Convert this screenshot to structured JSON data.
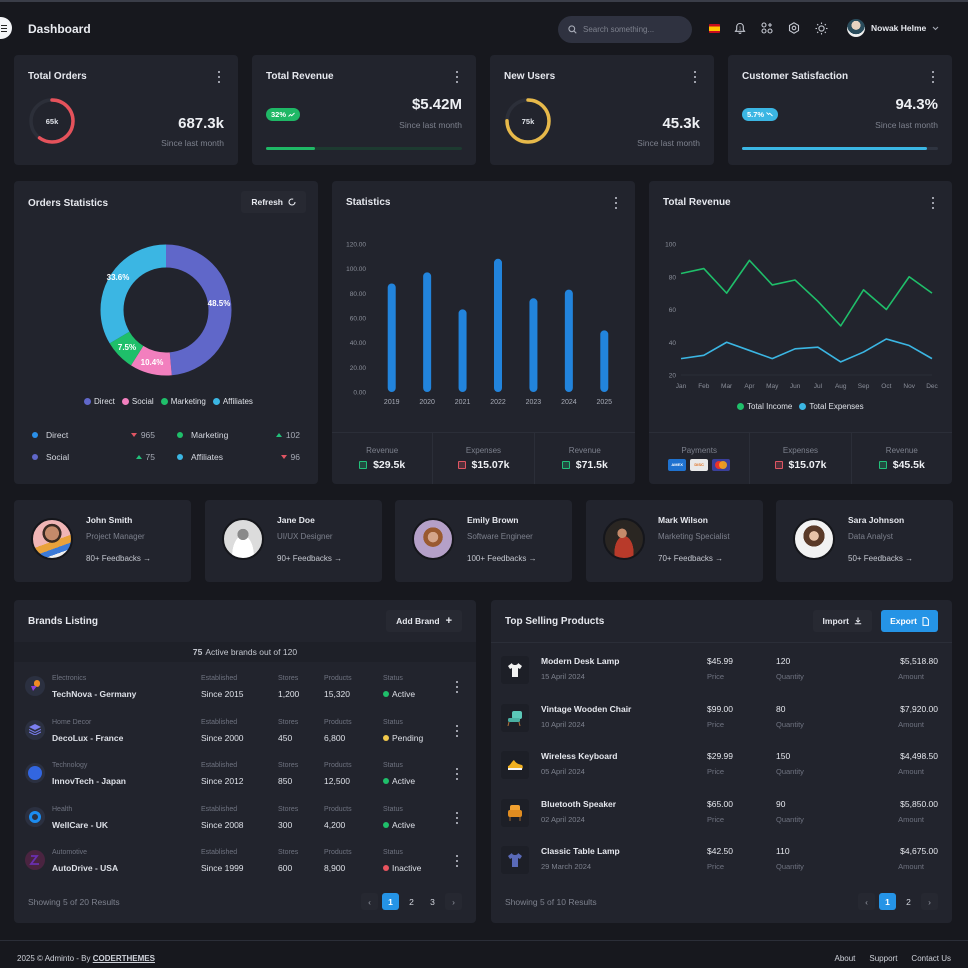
{
  "header": {
    "title": "Dashboard",
    "search_placeholder": "Search something...",
    "user_name": "Nowak Helme",
    "icons": [
      "menu-icon",
      "search-icon",
      "spain-flag-icon",
      "bell-icon",
      "apps-icon",
      "gear-icon",
      "sun-icon",
      "chevron-down-icon"
    ]
  },
  "stats": [
    {
      "title": "Total Orders",
      "ring_label": "65k",
      "ring_color": "#e5525b",
      "ring_pct": 60,
      "value": "687.3k",
      "sub": "Since last month"
    },
    {
      "title": "Total Revenue",
      "badge": "32%",
      "badge_color": "#1fb866",
      "badge_trend": "up",
      "value": "$5.42M",
      "sub": "Since last month",
      "progress_pct": 25,
      "progress_color": "#1fb866"
    },
    {
      "title": "New Users",
      "ring_label": "75k",
      "ring_color": "#e7b94a",
      "ring_pct": 75,
      "value": "45.3k",
      "sub": "Since last month"
    },
    {
      "title": "Customer Satisfaction",
      "badge": "5.7%",
      "badge_color": "#3bb6e3",
      "badge_trend": "down",
      "value": "94.3%",
      "sub": "Since last month",
      "progress_pct": 94.3,
      "progress_color": "#3bb6e3"
    }
  ],
  "orders_statistics": {
    "title": "Orders Statistics",
    "refresh_label": "Refresh",
    "legend": [
      {
        "label": "Direct",
        "color": "#6067c9"
      },
      {
        "label": "Social",
        "color": "#f27fbe"
      },
      {
        "label": "Marketing",
        "color": "#1fbf6a"
      },
      {
        "label": "Affiliates",
        "color": "#3bb6e3"
      }
    ],
    "breakdown": [
      {
        "label": "Direct",
        "dot": "#2a8fe8",
        "trend": "down",
        "value": "965"
      },
      {
        "label": "Marketing",
        "dot": "#1fbf6a",
        "trend": "up",
        "value": "102"
      },
      {
        "label": "Social",
        "dot": "#6067c9",
        "trend": "up",
        "value": "75"
      },
      {
        "label": "Affiliates",
        "dot": "#3bb6e3",
        "trend": "down",
        "value": "96"
      }
    ]
  },
  "statistics": {
    "title": "Statistics",
    "footer": [
      {
        "label": "Revenue",
        "value": "$29.5k",
        "type": "g"
      },
      {
        "label": "Expenses",
        "value": "$15.07k",
        "type": "r"
      },
      {
        "label": "Revenue",
        "value": "$71.5k",
        "type": "g"
      }
    ]
  },
  "total_revenue": {
    "title": "Total Revenue",
    "legend": [
      {
        "label": "Total Income",
        "color": "#1fbf6a"
      },
      {
        "label": "Total Expenses",
        "color": "#3bb6e3"
      }
    ],
    "payments_label": "Payments",
    "payment_methods": [
      "AMEX",
      "DISCOVER",
      "Mastercard"
    ],
    "footer": [
      {
        "label": "Expenses",
        "value": "$15.07k",
        "type": "r"
      },
      {
        "label": "Revenue",
        "value": "$45.5k",
        "type": "g"
      }
    ]
  },
  "chart_data": [
    {
      "type": "pie",
      "title": "Orders Statistics",
      "categories": [
        "Direct",
        "Social",
        "Marketing",
        "Affiliates"
      ],
      "values": [
        48.5,
        10.4,
        7.5,
        33.6
      ],
      "colors": [
        "#6067c9",
        "#f27fbe",
        "#1fbf6a",
        "#3bb6e3"
      ],
      "donut": true,
      "legend_position": "bottom"
    },
    {
      "type": "bar",
      "title": "Statistics",
      "categories": [
        "2019",
        "2020",
        "2021",
        "2022",
        "2023",
        "2024",
        "2025"
      ],
      "values": [
        88,
        97,
        67,
        108,
        76,
        83,
        50
      ],
      "yticks": [
        "0.00",
        "20.00",
        "40.00",
        "60.00",
        "80.00",
        "100.00",
        "120.00"
      ],
      "ylim": [
        0,
        120
      ],
      "xlabel": "",
      "ylabel": "",
      "color": "#2284dc",
      "grid": false
    },
    {
      "type": "line",
      "title": "Total Revenue",
      "x": [
        "Jan",
        "Feb",
        "Mar",
        "Apr",
        "May",
        "Jun",
        "Jul",
        "Aug",
        "Sep",
        "Oct",
        "Nov",
        "Dec"
      ],
      "series": [
        {
          "name": "Total Income",
          "values": [
            82,
            85,
            70,
            90,
            75,
            78,
            65,
            50,
            72,
            60,
            80,
            70
          ],
          "color": "#1fbf6a"
        },
        {
          "name": "Total Expenses",
          "values": [
            30,
            32,
            40,
            35,
            30,
            36,
            37,
            28,
            34,
            42,
            38,
            30
          ],
          "color": "#3bb6e3"
        }
      ],
      "yticks": [
        "20",
        "40",
        "60",
        "80",
        "100"
      ],
      "ylim": [
        20,
        100
      ],
      "legend_position": "bottom"
    }
  ],
  "team": [
    {
      "name": "John Smith",
      "role": "Project Manager",
      "feedback": "80+ Feedbacks →",
      "avatar_colors": [
        "#f0b5b5",
        "#e9a23b"
      ]
    },
    {
      "name": "Jane Doe",
      "role": "UI/UX Designer",
      "feedback": "90+ Feedbacks →",
      "avatar_colors": [
        "#e5e5e5",
        "#8a8a8a"
      ]
    },
    {
      "name": "Emily Brown",
      "role": "Software Engineer",
      "feedback": "100+ Feedbacks →",
      "avatar_colors": [
        "#b5a0c8",
        "#9a5a30"
      ]
    },
    {
      "name": "Mark Wilson",
      "role": "Marketing Specialist",
      "feedback": "70+ Feedbacks →",
      "avatar_colors": [
        "#2a2622",
        "#b83a2a"
      ]
    },
    {
      "name": "Sara Johnson",
      "role": "Data Analyst",
      "feedback": "50+ Feedbacks →",
      "avatar_colors": [
        "#f2f2f2",
        "#5a3a28"
      ]
    }
  ],
  "brands": {
    "title": "Brands Listing",
    "add_label": "Add Brand",
    "active_count": "75",
    "active_text": "Active brands out of 120",
    "col_labels": {
      "established": "Established",
      "stores": "Stores",
      "products": "Products",
      "status": "Status"
    },
    "rows": [
      {
        "category": "Electronics",
        "name": "TechNova - Germany",
        "established": "Since 2015",
        "stores": "1,200",
        "products": "15,320",
        "status": "Active",
        "status_color": "#1fbf6a",
        "logo_color": "#f08a24"
      },
      {
        "category": "Home Decor",
        "name": "DecoLux - France",
        "established": "Since 2000",
        "stores": "450",
        "products": "6,800",
        "status": "Pending",
        "status_color": "#f2c94c",
        "logo_color": "#7b7ff0"
      },
      {
        "category": "Technology",
        "name": "InnovTech - Japan",
        "established": "Since 2012",
        "stores": "850",
        "products": "12,500",
        "status": "Active",
        "status_color": "#1fbf6a",
        "logo_color": "#3266e0"
      },
      {
        "category": "Health",
        "name": "WellCare - UK",
        "established": "Since 2008",
        "stores": "300",
        "products": "4,200",
        "status": "Active",
        "status_color": "#1fbf6a",
        "logo_color": "#1c8cf0"
      },
      {
        "category": "Automotive",
        "name": "AutoDrive - USA",
        "established": "Since 1999",
        "stores": "600",
        "products": "8,900",
        "status": "Inactive",
        "status_color": "#e8545f",
        "logo_color": "#6a2fb0"
      }
    ],
    "showing": "Showing 5 of 20 Results",
    "pages": [
      "1",
      "2",
      "3"
    ],
    "current_page": "1"
  },
  "products": {
    "title": "Top Selling Products",
    "import_label": "Import",
    "export_label": "Export",
    "col_labels": {
      "price": "Price",
      "quantity": "Quantity",
      "amount": "Amount"
    },
    "rows": [
      {
        "name": "Modern Desk Lamp",
        "date": "15 April 2024",
        "price": "$45.99",
        "quantity": "120",
        "amount": "$5,518.80",
        "thumb": "tshirt-white"
      },
      {
        "name": "Vintage Wooden Chair",
        "date": "10 April 2024",
        "price": "$99.00",
        "quantity": "80",
        "amount": "$7,920.00",
        "thumb": "chair-teal"
      },
      {
        "name": "Wireless Keyboard",
        "date": "05 April 2024",
        "price": "$29.99",
        "quantity": "150",
        "amount": "$4,498.50",
        "thumb": "shoe-yellow"
      },
      {
        "name": "Bluetooth Speaker",
        "date": "02 April 2024",
        "price": "$65.00",
        "quantity": "90",
        "amount": "$5,850.00",
        "thumb": "armchair-orange"
      },
      {
        "name": "Classic Table Lamp",
        "date": "29 March 2024",
        "price": "$42.50",
        "quantity": "110",
        "amount": "$4,675.00",
        "thumb": "tshirt-blue"
      }
    ],
    "showing": "Showing 5 of 10 Results",
    "pages": [
      "1",
      "2"
    ],
    "current_page": "1"
  },
  "footer": {
    "copyright": "2025 © Adminto - By",
    "brand": "CODERTHEMES",
    "links": [
      "About",
      "Support",
      "Contact Us"
    ]
  }
}
